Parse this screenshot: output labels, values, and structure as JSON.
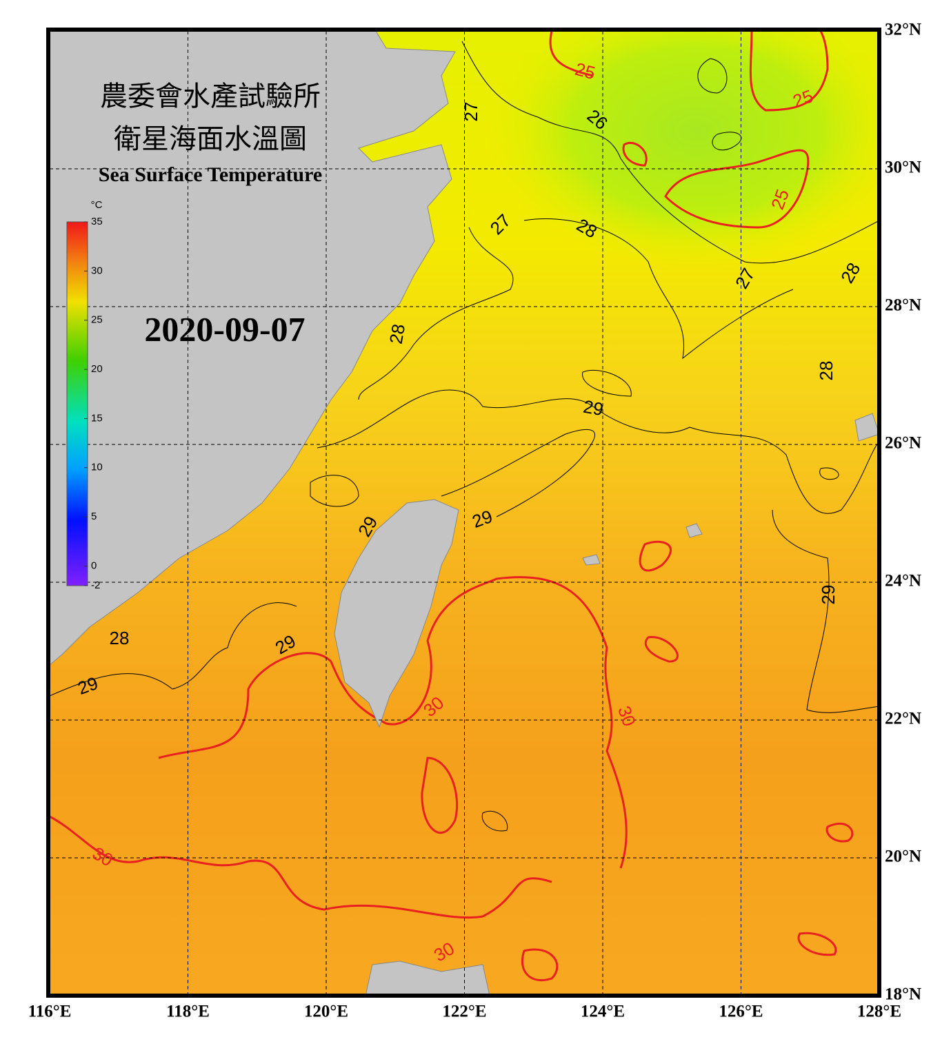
{
  "header": {
    "title_zh_1": "農委會水產試驗所",
    "title_zh_2": "衛星海面水溫圖",
    "title_en": "Sea Surface Temperature",
    "date": "2020-09-07"
  },
  "colorbar": {
    "unit": "°C",
    "range": [
      -2,
      35
    ],
    "ticks": [
      35,
      30,
      25,
      20,
      15,
      10,
      5,
      0,
      -2
    ]
  },
  "map": {
    "lon_range": [
      116,
      128
    ],
    "lat_range": [
      18,
      32
    ],
    "lon_ticks": [
      {
        "value": 116,
        "label": "116°E"
      },
      {
        "value": 118,
        "label": "118°E"
      },
      {
        "value": 120,
        "label": "120°E"
      },
      {
        "value": 122,
        "label": "122°E"
      },
      {
        "value": 124,
        "label": "124°E"
      },
      {
        "value": 126,
        "label": "126°E"
      },
      {
        "value": 128,
        "label": "128°E"
      }
    ],
    "lat_ticks": [
      {
        "value": 32,
        "label": "32°N"
      },
      {
        "value": 30,
        "label": "30°N"
      },
      {
        "value": 28,
        "label": "28°N"
      },
      {
        "value": 26,
        "label": "26°N"
      },
      {
        "value": 24,
        "label": "24°N"
      },
      {
        "value": 22,
        "label": "22°N"
      },
      {
        "value": 20,
        "label": "20°N"
      },
      {
        "value": 18,
        "label": "18°N"
      }
    ],
    "contour_labels": [
      "25",
      "25",
      "25",
      "26",
      "27",
      "27",
      "27",
      "28",
      "28",
      "28",
      "28",
      "28",
      "29",
      "29",
      "29",
      "29",
      "29",
      "29",
      "30",
      "30",
      "30",
      "30"
    ]
  }
}
